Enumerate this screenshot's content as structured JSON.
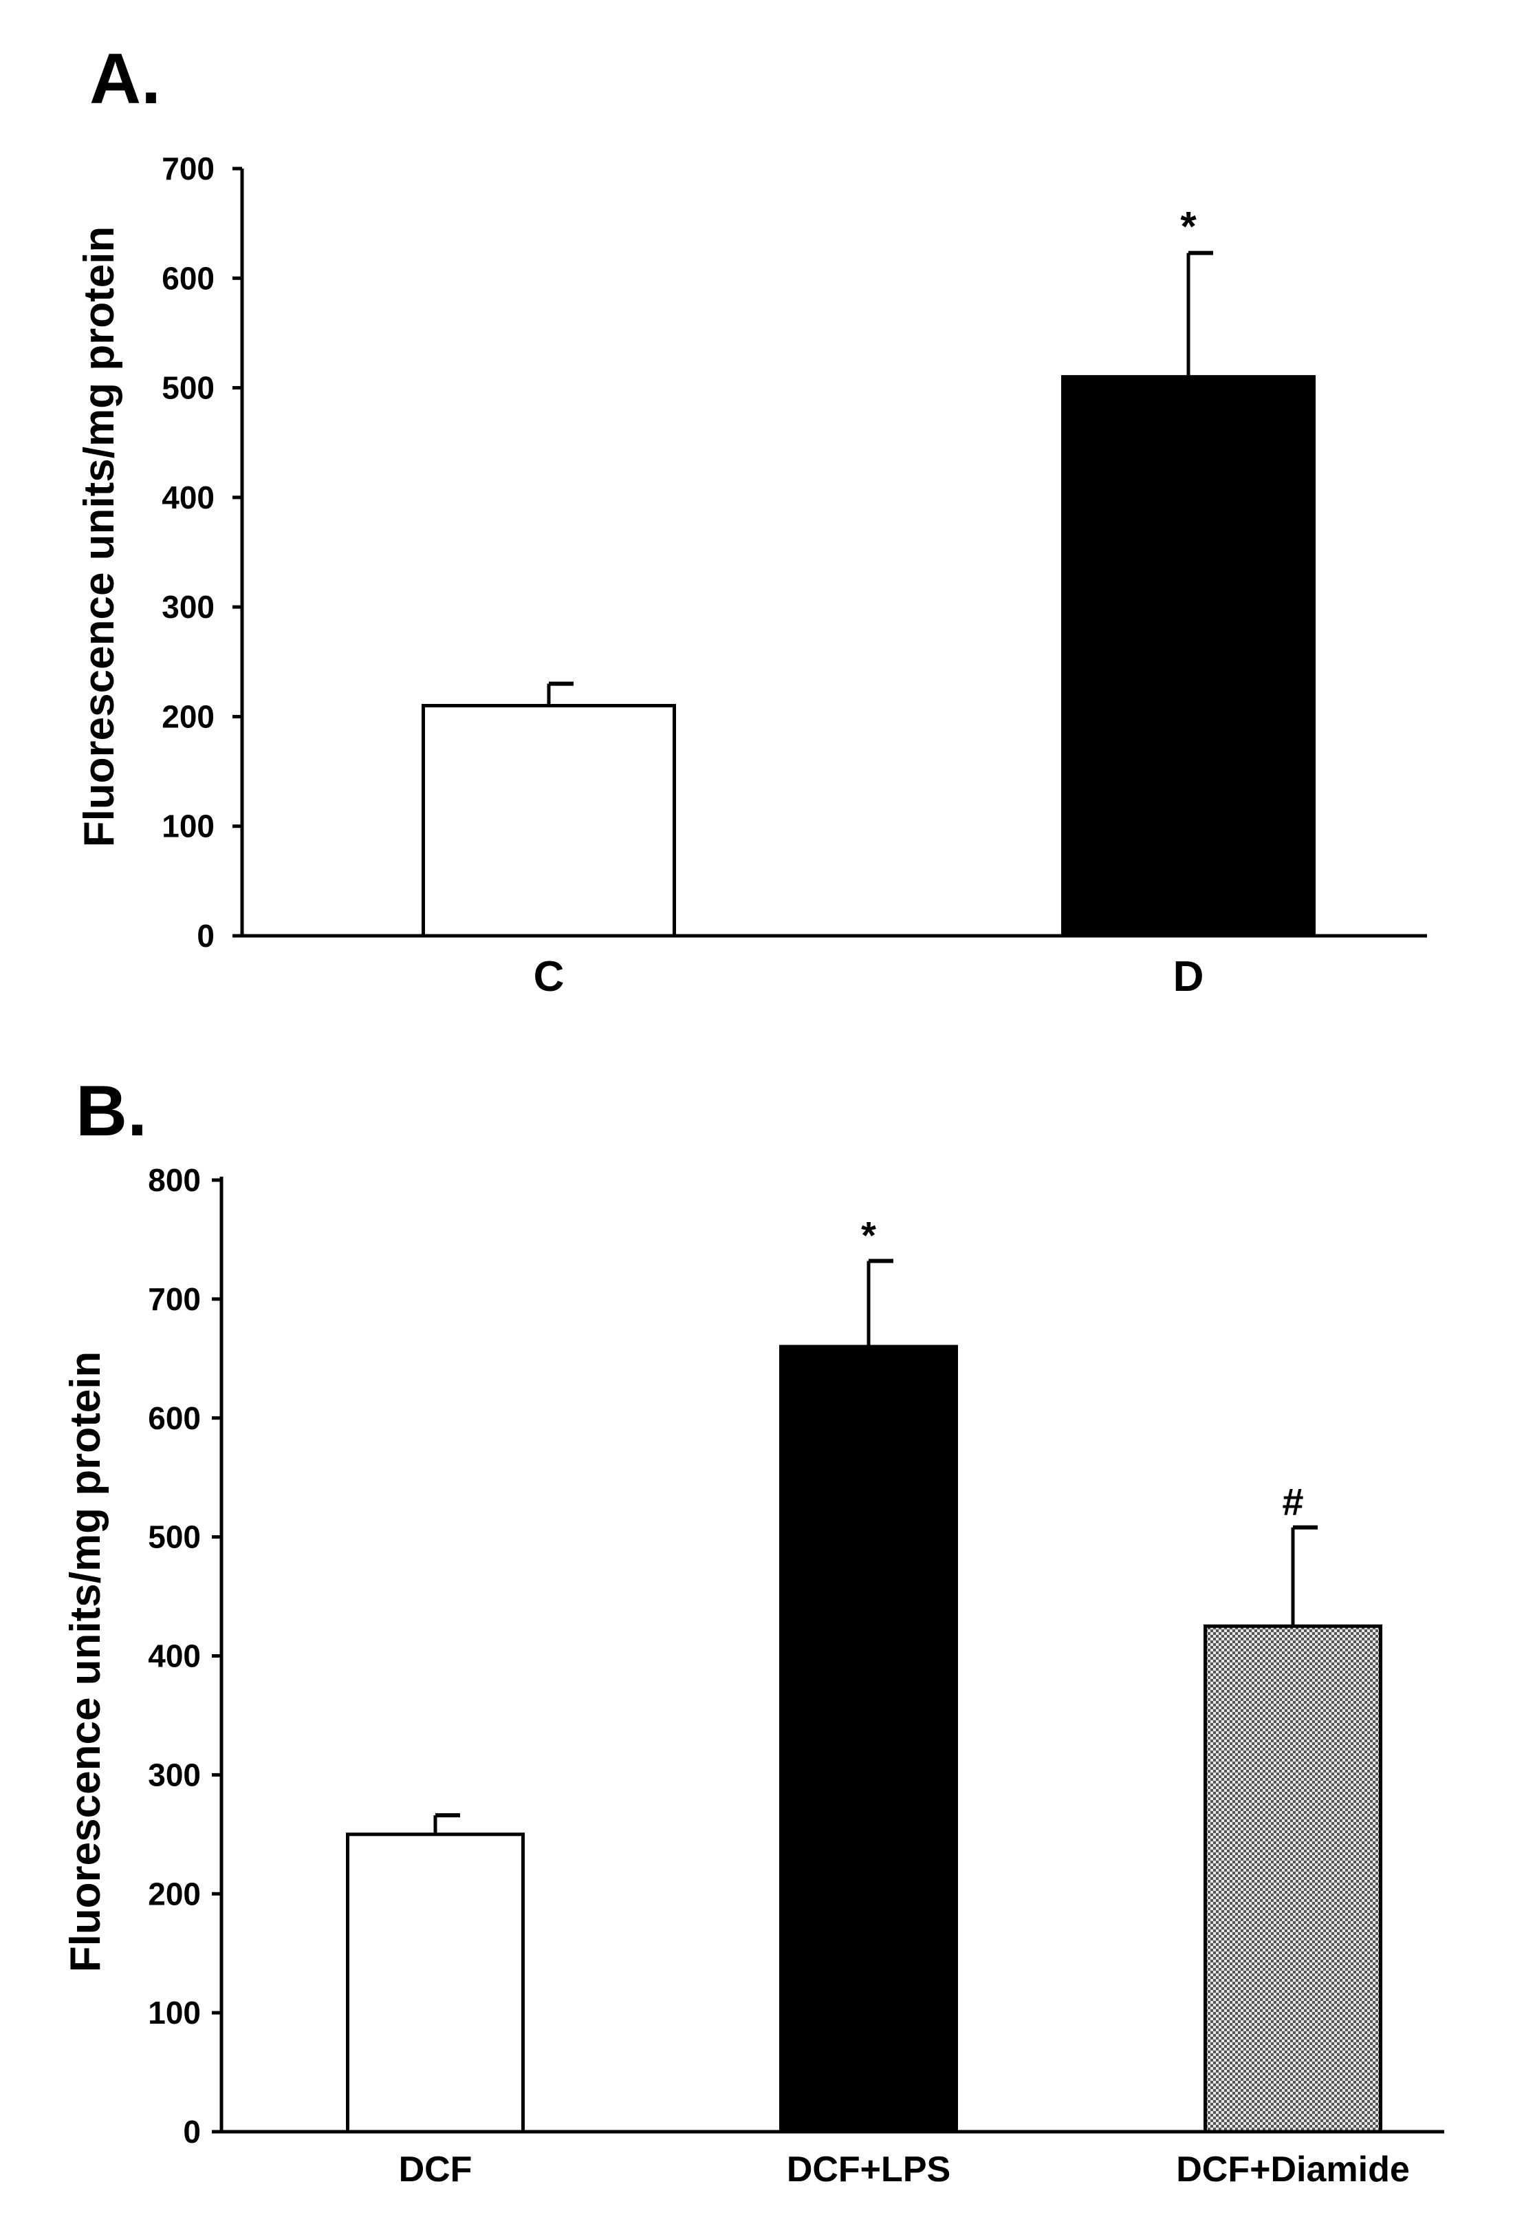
{
  "chart_data": [
    {
      "panel_label": "A.",
      "type": "bar",
      "ylabel": "Fluorescence units/mg protein",
      "xlabel": "",
      "ylim": [
        0,
        700
      ],
      "yticks": [
        0,
        100,
        200,
        300,
        400,
        500,
        600,
        700
      ],
      "categories": [
        "C",
        "D"
      ],
      "values": [
        210,
        510
      ],
      "errors": [
        20,
        113
      ],
      "annotations": [
        "",
        "*"
      ],
      "fills": [
        "white",
        "black"
      ]
    },
    {
      "panel_label": "B.",
      "type": "bar",
      "ylabel": "Fluorescence units/mg protein",
      "xlabel": "",
      "ylim": [
        0,
        800
      ],
      "yticks": [
        0,
        100,
        200,
        300,
        400,
        500,
        600,
        700,
        800
      ],
      "categories": [
        "DCF",
        "DCF+LPS",
        "DCF+Diamide"
      ],
      "values": [
        250,
        660,
        425
      ],
      "errors": [
        16,
        72,
        83
      ],
      "annotations": [
        "",
        "*",
        "#"
      ],
      "fills": [
        "white",
        "black",
        "checker"
      ]
    }
  ],
  "colors": {
    "ink": "#000000",
    "paper": "#ffffff",
    "checker_dark": "#555555"
  }
}
